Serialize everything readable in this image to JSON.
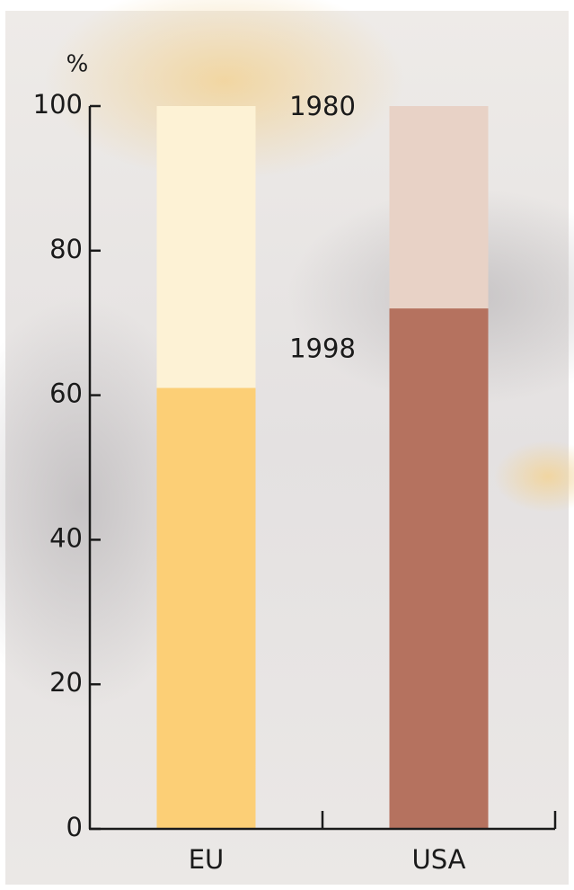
{
  "chart_data": {
    "type": "bar",
    "y_unit": "%",
    "categories": [
      "EU",
      "USA"
    ],
    "series": [
      {
        "name": "1980",
        "colors": [
          "#fdf2d5",
          "#e8d2c6"
        ],
        "values": [
          100,
          100
        ]
      },
      {
        "name": "1998",
        "colors": [
          "#fccf76",
          "#b5725f"
        ],
        "values": [
          61,
          72
        ]
      }
    ],
    "ylim": [
      0,
      100
    ],
    "yticks": [
      0,
      20,
      40,
      60,
      80,
      100
    ]
  }
}
